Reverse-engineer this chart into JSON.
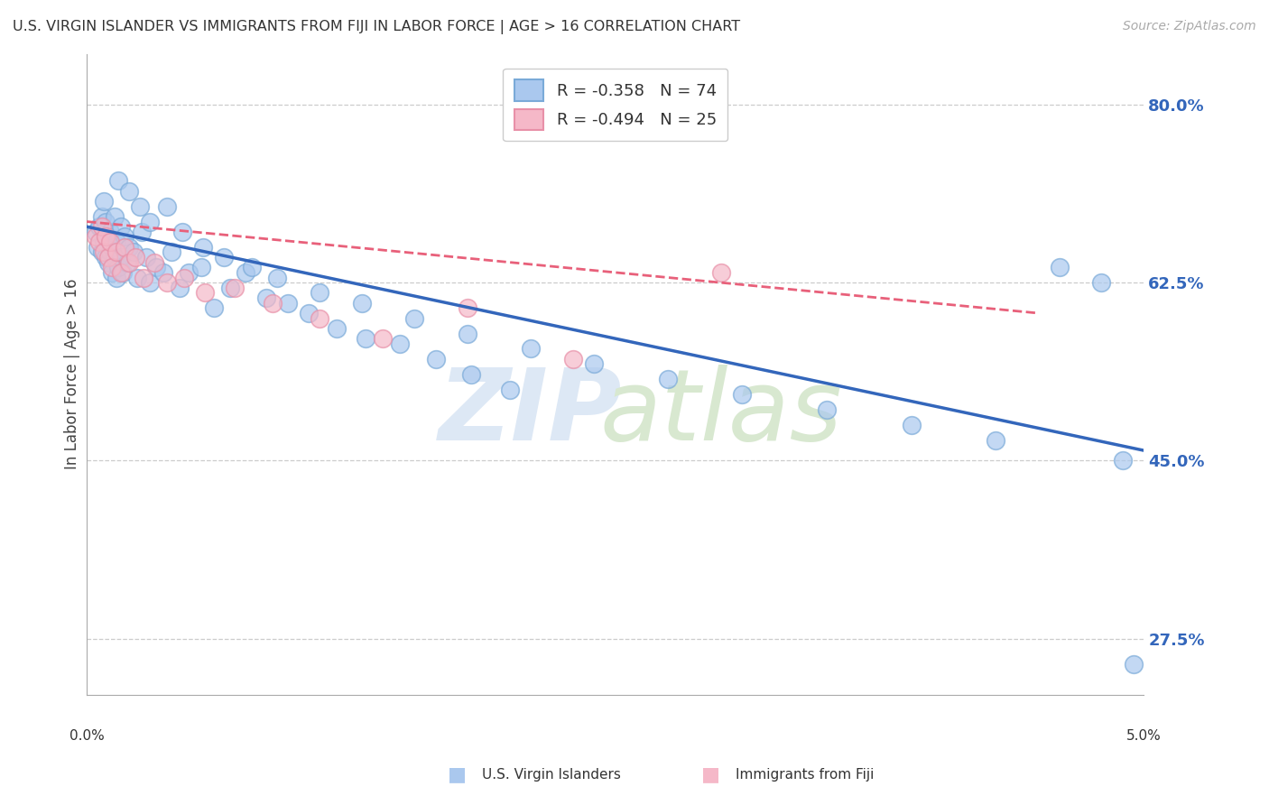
{
  "title": "U.S. VIRGIN ISLANDER VS IMMIGRANTS FROM FIJI IN LABOR FORCE | AGE > 16 CORRELATION CHART",
  "source": "Source: ZipAtlas.com",
  "ylabel": "In Labor Force | Age > 16",
  "xlim": [
    0.0,
    5.0
  ],
  "ylim": [
    22.0,
    85.0
  ],
  "yticks": [
    27.5,
    45.0,
    62.5,
    80.0
  ],
  "legend_label_blue": "U.S. Virgin Islanders",
  "legend_label_pink": "Immigrants from Fiji",
  "blue_fill": "#aac8ee",
  "blue_edge": "#7aaad8",
  "pink_fill": "#f5b8c8",
  "pink_edge": "#e890a8",
  "blue_line_color": "#3366bb",
  "pink_line_color": "#e8607a",
  "R_blue": -0.358,
  "N_blue": 74,
  "R_pink": -0.494,
  "N_pink": 25,
  "blue_line_intercept": 68.0,
  "blue_line_slope": -4.4,
  "pink_line_intercept": 68.5,
  "pink_line_slope": -2.0,
  "pink_line_xmax": 4.5,
  "background_color": "#ffffff",
  "grid_color": "#cccccc",
  "blue_scatter_x": [
    0.04,
    0.05,
    0.06,
    0.07,
    0.07,
    0.08,
    0.08,
    0.09,
    0.09,
    0.1,
    0.1,
    0.11,
    0.11,
    0.12,
    0.12,
    0.13,
    0.13,
    0.14,
    0.14,
    0.15,
    0.15,
    0.16,
    0.16,
    0.17,
    0.18,
    0.19,
    0.2,
    0.22,
    0.24,
    0.26,
    0.28,
    0.3,
    0.33,
    0.36,
    0.4,
    0.44,
    0.48,
    0.54,
    0.6,
    0.68,
    0.75,
    0.85,
    0.95,
    1.05,
    1.18,
    1.32,
    1.48,
    1.65,
    1.82,
    2.0,
    0.2,
    0.25,
    0.3,
    0.38,
    0.45,
    0.55,
    0.65,
    0.78,
    0.9,
    1.1,
    1.3,
    1.55,
    1.8,
    2.1,
    2.4,
    2.75,
    3.1,
    3.5,
    3.9,
    4.3,
    4.6,
    4.8,
    4.9,
    4.95
  ],
  "blue_scatter_y": [
    67.5,
    66.0,
    68.0,
    65.5,
    69.0,
    66.5,
    70.5,
    65.0,
    68.5,
    64.5,
    67.0,
    65.5,
    67.5,
    63.5,
    66.0,
    65.0,
    69.0,
    63.0,
    66.5,
    64.0,
    72.5,
    65.0,
    68.0,
    63.5,
    67.0,
    64.5,
    66.0,
    65.5,
    63.0,
    67.5,
    65.0,
    62.5,
    64.0,
    63.5,
    65.5,
    62.0,
    63.5,
    64.0,
    60.0,
    62.0,
    63.5,
    61.0,
    60.5,
    59.5,
    58.0,
    57.0,
    56.5,
    55.0,
    53.5,
    52.0,
    71.5,
    70.0,
    68.5,
    70.0,
    67.5,
    66.0,
    65.0,
    64.0,
    63.0,
    61.5,
    60.5,
    59.0,
    57.5,
    56.0,
    54.5,
    53.0,
    51.5,
    50.0,
    48.5,
    47.0,
    64.0,
    62.5,
    45.0,
    25.0
  ],
  "pink_scatter_x": [
    0.04,
    0.06,
    0.07,
    0.08,
    0.09,
    0.1,
    0.11,
    0.12,
    0.14,
    0.16,
    0.18,
    0.2,
    0.23,
    0.27,
    0.32,
    0.38,
    0.46,
    0.56,
    0.7,
    0.88,
    1.1,
    1.4,
    1.8,
    2.3,
    3.0
  ],
  "pink_scatter_y": [
    67.0,
    66.5,
    68.0,
    65.5,
    67.0,
    65.0,
    66.5,
    64.0,
    65.5,
    63.5,
    66.0,
    64.5,
    65.0,
    63.0,
    64.5,
    62.5,
    63.0,
    61.5,
    62.0,
    60.5,
    59.0,
    57.0,
    60.0,
    55.0,
    63.5
  ]
}
